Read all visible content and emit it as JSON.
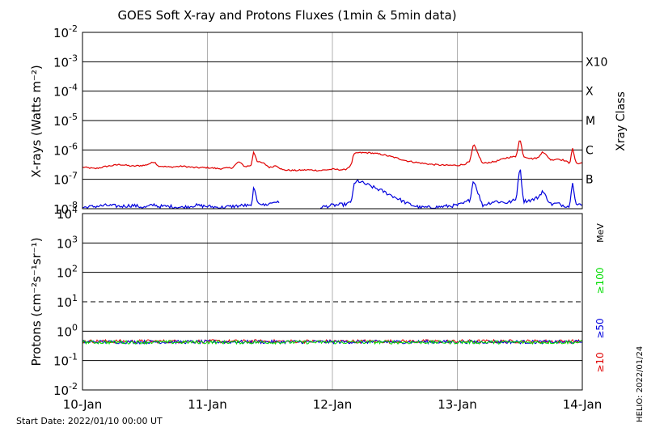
{
  "chart_data": [
    {
      "type": "line",
      "title": "GOES Soft X-ray and Protons Fluxes   (1min & 5min data)",
      "ylabel": "X-rays (Watts m⁻²)",
      "y_scale": "log",
      "ylim": [
        1e-08,
        0.01
      ],
      "y_tick_labels": [
        {
          "base": "10",
          "exp": "-2",
          "value": 0.01
        },
        {
          "base": "10",
          "exp": "-3",
          "value": 0.001
        },
        {
          "base": "10",
          "exp": "-4",
          "value": 0.0001
        },
        {
          "base": "10",
          "exp": "-5",
          "value": 1e-05
        },
        {
          "base": "10",
          "exp": "-6",
          "value": 1e-06
        },
        {
          "base": "10",
          "exp": "-7",
          "value": 1e-07
        },
        {
          "base": "10",
          "exp": "-8",
          "value": 1e-08
        }
      ],
      "xray_class_axis_title": "Xray Class",
      "xray_classes": [
        {
          "label": "X10",
          "flux": 0.001
        },
        {
          "label": "X",
          "flux": 0.0001
        },
        {
          "label": "M",
          "flux": 1e-05
        },
        {
          "label": "C",
          "flux": 1e-06
        },
        {
          "label": "B",
          "flux": 1e-07
        }
      ],
      "grid": true,
      "x_unit": "days since 2022-01-10 00:00 UT",
      "series": [
        {
          "name": "",
          "color": "#e00000",
          "values_x_day": [
            0,
            0.1,
            0.2,
            0.3,
            0.4,
            0.5,
            0.58,
            0.6,
            0.7,
            0.8,
            0.9,
            1.0,
            1.1,
            1.2,
            1.25,
            1.3,
            1.35,
            1.37,
            1.4,
            1.45,
            1.5,
            1.55,
            1.6,
            1.7,
            1.8,
            1.9,
            2.0,
            2.1,
            2.15,
            2.17,
            2.2,
            2.3,
            2.4,
            2.5,
            2.6,
            2.7,
            2.8,
            2.9,
            3.0,
            3.05,
            3.1,
            3.13,
            3.2,
            3.3,
            3.4,
            3.47,
            3.5,
            3.53,
            3.6,
            3.65,
            3.68,
            3.75,
            3.8,
            3.85,
            3.9,
            3.92,
            3.95,
            4.0
          ],
          "values_y": [
            2.6e-07,
            2.3e-07,
            2.8e-07,
            3.2e-07,
            2.8e-07,
            3e-07,
            4e-07,
            2.9e-07,
            2.6e-07,
            2.8e-07,
            2.5e-07,
            2.5e-07,
            2.3e-07,
            2.5e-07,
            4e-07,
            2.7e-07,
            3e-07,
            9e-07,
            4e-07,
            3.5e-07,
            2.5e-07,
            3e-07,
            2.1e-07,
            2e-07,
            2.1e-07,
            2e-07,
            2.2e-07,
            2.1e-07,
            3e-07,
            7e-07,
            8e-07,
            8e-07,
            7e-07,
            5.5e-07,
            4.2e-07,
            3.6e-07,
            3.2e-07,
            3e-07,
            3e-07,
            3.2e-07,
            4e-07,
            1.6e-06,
            3.5e-07,
            4e-07,
            5.5e-07,
            6e-07,
            2.5e-06,
            6e-07,
            5e-07,
            5.5e-07,
            9e-07,
            4.5e-07,
            5e-07,
            4.5e-07,
            3.5e-07,
            1.2e-06,
            3.5e-07,
            3.6e-07
          ]
        },
        {
          "name": "",
          "color": "#0000dd",
          "values_x_day": [
            0,
            0.1,
            0.2,
            0.3,
            0.4,
            0.5,
            0.58,
            0.6,
            0.7,
            0.8,
            0.9,
            1.0,
            1.1,
            1.2,
            1.3,
            1.35,
            1.37,
            1.4,
            1.45,
            1.5,
            1.55,
            1.58,
            1.6,
            1.7,
            1.8,
            1.9,
            2.0,
            2.1,
            2.15,
            2.17,
            2.2,
            2.3,
            2.4,
            2.5,
            2.6,
            2.7,
            2.8,
            2.9,
            3.0,
            3.05,
            3.1,
            3.13,
            3.2,
            3.3,
            3.4,
            3.47,
            3.5,
            3.53,
            3.6,
            3.65,
            3.68,
            3.75,
            3.8,
            3.85,
            3.9,
            3.92,
            3.95,
            4.0
          ],
          "values_y": [
            1.1e-08,
            1.2e-08,
            1.3e-08,
            1.2e-08,
            1.3e-08,
            1.1e-08,
            1.4e-08,
            1.2e-08,
            1.2e-08,
            1.1e-08,
            1.3e-08,
            1.2e-08,
            1.1e-08,
            1.2e-08,
            1.3e-08,
            1.2e-08,
            5e-08,
            1.8e-08,
            1.3e-08,
            1.5e-08,
            1.8e-08,
            1.4e-08,
            null,
            null,
            null,
            1.1e-08,
            1.3e-08,
            1.4e-08,
            1.6e-08,
            6e-08,
            9e-08,
            6e-08,
            4e-08,
            2.5e-08,
            1.5e-08,
            1.1e-08,
            1.1e-08,
            1.2e-08,
            1.3e-08,
            1.5e-08,
            2e-08,
            1e-07,
            1.3e-08,
            1.8e-08,
            1.6e-08,
            2e-08,
            3e-07,
            1.8e-08,
            2e-08,
            2.5e-08,
            4e-08,
            1.4e-08,
            1.5e-08,
            1.3e-08,
            1.2e-08,
            1e-07,
            1.4e-08,
            1.3e-08
          ]
        }
      ]
    },
    {
      "type": "line",
      "ylabel": "Protons (cm⁻²s⁻¹sr⁻¹)",
      "y_scale": "log",
      "ylim": [
        0.01,
        10000
      ],
      "y_tick_labels": [
        {
          "base": "10",
          "exp": "4",
          "value": 10000
        },
        {
          "base": "10",
          "exp": "3",
          "value": 1000
        },
        {
          "base": "10",
          "exp": "2",
          "value": 100
        },
        {
          "base": "10",
          "exp": "1",
          "value": 10
        },
        {
          "base": "10",
          "exp": "0",
          "value": 1
        },
        {
          "base": "10",
          "exp": "-1",
          "value": 0.1
        },
        {
          "base": "10",
          "exp": "-2",
          "value": 0.01
        }
      ],
      "threshold_line": {
        "value": 10,
        "style": "dashed"
      },
      "energy_unit": "MeV",
      "grid": true,
      "x_unit": "days since 2022-01-10 00:00 UT",
      "series": [
        {
          "name": "≥10",
          "color": "#e00000",
          "level": 0.45
        },
        {
          "name": "≥50",
          "color": "#0000dd",
          "level": 0.43
        },
        {
          "name": "≥100",
          "color": "#00dd00",
          "level": 0.42
        }
      ]
    }
  ],
  "x_axis": {
    "categories": [
      "10-Jan",
      "11-Jan",
      "12-Jan",
      "13-Jan",
      "14-Jan"
    ],
    "xlim": [
      0,
      4
    ]
  },
  "footer": {
    "start_date": "Start Date: 2022/01/10 00:00 UT",
    "credit": "HELIO: 2022/01/24"
  }
}
